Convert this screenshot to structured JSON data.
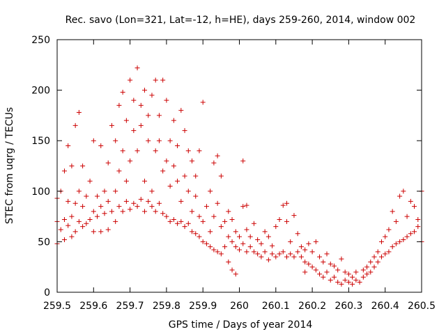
{
  "chart_data": {
    "type": "scatter",
    "title": "Rec. savo (Lon=321, Lat=-12, h=HE), days 259-260, 2014, window 002",
    "xlabel": "GPS time / Days of year 2014",
    "ylabel": "STEC from uqrg / TECUs",
    "xlim": [
      259.5,
      260.5
    ],
    "ylim": [
      0,
      250
    ],
    "x_ticks": [
      259.5,
      259.6,
      259.7,
      259.8,
      259.9,
      260,
      260.1,
      260.2,
      260.3,
      260.4,
      260.5
    ],
    "x_tick_labels": [
      "259.5",
      "259.6",
      "259.7",
      "259.8",
      "259.9",
      "260",
      "260.1",
      "260.2",
      "260.3",
      "260.4",
      "260.5"
    ],
    "y_ticks": [
      0,
      50,
      100,
      150,
      200,
      250
    ],
    "y_tick_labels": [
      "0",
      "50",
      "100",
      "150",
      "200",
      "250"
    ],
    "grid": false,
    "legend": "none",
    "marker": "+",
    "color": "#cc0000",
    "series": [
      {
        "points": [
          [
            259.5,
            48
          ],
          [
            259.5,
            70
          ],
          [
            259.5,
            93
          ],
          [
            259.51,
            62
          ],
          [
            259.51,
            100
          ],
          [
            259.52,
            72
          ],
          [
            259.52,
            120
          ],
          [
            259.52,
            52
          ],
          [
            259.53,
            66
          ],
          [
            259.53,
            90
          ],
          [
            259.53,
            145
          ],
          [
            259.54,
            55
          ],
          [
            259.54,
            75
          ],
          [
            259.54,
            125
          ],
          [
            259.55,
            60
          ],
          [
            259.55,
            88
          ],
          [
            259.55,
            165
          ],
          [
            259.56,
            70
          ],
          [
            259.56,
            100
          ],
          [
            259.56,
            178
          ],
          [
            259.57,
            65
          ],
          [
            259.57,
            85
          ],
          [
            259.57,
            125
          ],
          [
            259.58,
            68
          ],
          [
            259.58,
            95
          ],
          [
            259.59,
            72
          ],
          [
            259.59,
            110
          ],
          [
            259.6,
            60
          ],
          [
            259.6,
            80
          ],
          [
            259.6,
            150
          ],
          [
            259.61,
            75
          ],
          [
            259.61,
            95
          ],
          [
            259.62,
            60
          ],
          [
            259.62,
            85
          ],
          [
            259.62,
            145
          ],
          [
            259.63,
            78
          ],
          [
            259.63,
            100
          ],
          [
            259.64,
            62
          ],
          [
            259.64,
            90
          ],
          [
            259.64,
            128
          ],
          [
            259.65,
            80
          ],
          [
            259.65,
            165
          ],
          [
            259.66,
            70
          ],
          [
            259.66,
            100
          ],
          [
            259.66,
            150
          ],
          [
            259.67,
            85
          ],
          [
            259.67,
            120
          ],
          [
            259.67,
            185
          ],
          [
            259.68,
            80
          ],
          [
            259.68,
            140
          ],
          [
            259.68,
            198
          ],
          [
            259.69,
            90
          ],
          [
            259.69,
            110
          ],
          [
            259.69,
            170
          ],
          [
            259.7,
            82
          ],
          [
            259.7,
            130
          ],
          [
            259.7,
            210
          ],
          [
            259.71,
            88
          ],
          [
            259.71,
            160
          ],
          [
            259.71,
            190
          ],
          [
            259.72,
            85
          ],
          [
            259.72,
            140
          ],
          [
            259.72,
            222
          ],
          [
            259.73,
            92
          ],
          [
            259.73,
            165
          ],
          [
            259.73,
            185
          ],
          [
            259.74,
            80
          ],
          [
            259.74,
            110
          ],
          [
            259.74,
            200
          ],
          [
            259.75,
            90
          ],
          [
            259.75,
            150
          ],
          [
            259.75,
            175
          ],
          [
            259.76,
            85
          ],
          [
            259.76,
            100
          ],
          [
            259.76,
            195
          ],
          [
            259.77,
            80
          ],
          [
            259.77,
            140
          ],
          [
            259.77,
            210
          ],
          [
            259.78,
            88
          ],
          [
            259.78,
            175
          ],
          [
            259.78,
            150
          ],
          [
            259.79,
            78
          ],
          [
            259.79,
            120
          ],
          [
            259.79,
            210
          ],
          [
            259.8,
            75
          ],
          [
            259.8,
            130
          ],
          [
            259.8,
            190
          ],
          [
            259.81,
            70
          ],
          [
            259.81,
            105
          ],
          [
            259.81,
            150
          ],
          [
            259.82,
            72
          ],
          [
            259.82,
            125
          ],
          [
            259.82,
            170
          ],
          [
            259.83,
            68
          ],
          [
            259.83,
            110
          ],
          [
            259.83,
            145
          ],
          [
            259.84,
            70
          ],
          [
            259.84,
            90
          ],
          [
            259.84,
            180
          ],
          [
            259.85,
            65
          ],
          [
            259.85,
            115
          ],
          [
            259.85,
            160
          ],
          [
            259.86,
            68
          ],
          [
            259.86,
            100
          ],
          [
            259.86,
            140
          ],
          [
            259.87,
            60
          ],
          [
            259.87,
            80
          ],
          [
            259.87,
            130
          ],
          [
            259.88,
            58
          ],
          [
            259.88,
            95
          ],
          [
            259.88,
            115
          ],
          [
            259.89,
            55
          ],
          [
            259.89,
            75
          ],
          [
            259.89,
            140
          ],
          [
            259.9,
            50
          ],
          [
            259.9,
            70
          ],
          [
            259.9,
            188
          ],
          [
            259.91,
            48
          ],
          [
            259.91,
            85
          ],
          [
            259.92,
            45
          ],
          [
            259.92,
            60
          ],
          [
            259.92,
            100
          ],
          [
            259.93,
            42
          ],
          [
            259.93,
            75
          ],
          [
            259.93,
            128
          ],
          [
            259.94,
            40
          ],
          [
            259.94,
            88
          ],
          [
            259.94,
            135
          ],
          [
            259.95,
            38
          ],
          [
            259.95,
            65
          ],
          [
            259.95,
            115
          ],
          [
            259.96,
            45
          ],
          [
            259.96,
            70
          ],
          [
            259.97,
            30
          ],
          [
            259.97,
            55
          ],
          [
            259.97,
            80
          ],
          [
            259.98,
            50
          ],
          [
            259.98,
            22
          ],
          [
            259.98,
            72
          ],
          [
            259.99,
            45
          ],
          [
            259.99,
            60
          ],
          [
            259.99,
            18
          ],
          [
            260.0,
            42
          ],
          [
            260.0,
            55
          ],
          [
            260.01,
            48
          ],
          [
            260.01,
            85
          ],
          [
            260.01,
            130
          ],
          [
            260.02,
            40
          ],
          [
            260.02,
            62
          ],
          [
            260.02,
            86
          ],
          [
            260.03,
            45
          ],
          [
            260.03,
            55
          ],
          [
            260.04,
            40
          ],
          [
            260.04,
            68
          ],
          [
            260.05,
            38
          ],
          [
            260.05,
            52
          ],
          [
            260.06,
            35
          ],
          [
            260.06,
            48
          ],
          [
            260.07,
            40
          ],
          [
            260.07,
            60
          ],
          [
            260.08,
            32
          ],
          [
            260.08,
            55
          ],
          [
            260.09,
            38
          ],
          [
            260.09,
            46
          ],
          [
            260.1,
            35
          ],
          [
            260.1,
            65
          ],
          [
            260.11,
            38
          ],
          [
            260.11,
            72
          ],
          [
            260.12,
            40
          ],
          [
            260.12,
            86
          ],
          [
            260.13,
            35
          ],
          [
            260.13,
            70
          ],
          [
            260.13,
            88
          ],
          [
            260.14,
            38
          ],
          [
            260.14,
            50
          ],
          [
            260.15,
            35
          ],
          [
            260.15,
            76
          ],
          [
            260.16,
            40
          ],
          [
            260.16,
            58
          ],
          [
            260.17,
            35
          ],
          [
            260.17,
            45
          ],
          [
            260.18,
            30
          ],
          [
            260.18,
            20
          ],
          [
            260.18,
            42
          ],
          [
            260.19,
            28
          ],
          [
            260.19,
            48
          ],
          [
            260.2,
            25
          ],
          [
            260.2,
            40
          ],
          [
            260.21,
            22
          ],
          [
            260.21,
            50
          ],
          [
            260.22,
            18
          ],
          [
            260.22,
            35
          ],
          [
            260.23,
            15
          ],
          [
            260.23,
            30
          ],
          [
            260.24,
            20
          ],
          [
            260.24,
            38
          ],
          [
            260.25,
            12
          ],
          [
            260.25,
            28
          ],
          [
            260.26,
            15
          ],
          [
            260.26,
            26
          ],
          [
            260.27,
            10
          ],
          [
            260.27,
            22
          ],
          [
            260.28,
            8
          ],
          [
            260.28,
            33
          ],
          [
            260.29,
            12
          ],
          [
            260.29,
            20
          ],
          [
            260.3,
            10
          ],
          [
            260.3,
            18
          ],
          [
            260.31,
            8
          ],
          [
            260.31,
            15
          ],
          [
            260.32,
            12
          ],
          [
            260.32,
            20
          ],
          [
            260.33,
            10
          ],
          [
            260.34,
            15
          ],
          [
            260.34,
            22
          ],
          [
            260.35,
            18
          ],
          [
            260.35,
            25
          ],
          [
            260.36,
            20
          ],
          [
            260.36,
            30
          ],
          [
            260.37,
            25
          ],
          [
            260.37,
            35
          ],
          [
            260.38,
            30
          ],
          [
            260.38,
            40
          ],
          [
            260.39,
            35
          ],
          [
            260.39,
            50
          ],
          [
            260.4,
            38
          ],
          [
            260.4,
            55
          ],
          [
            260.41,
            40
          ],
          [
            260.41,
            62
          ],
          [
            260.42,
            45
          ],
          [
            260.42,
            80
          ],
          [
            260.43,
            48
          ],
          [
            260.43,
            70
          ],
          [
            260.44,
            50
          ],
          [
            260.44,
            95
          ],
          [
            260.45,
            52
          ],
          [
            260.45,
            100
          ],
          [
            260.46,
            55
          ],
          [
            260.46,
            75
          ],
          [
            260.47,
            58
          ],
          [
            260.47,
            90
          ],
          [
            260.48,
            60
          ],
          [
            260.48,
            85
          ],
          [
            260.49,
            65
          ],
          [
            260.49,
            72
          ],
          [
            260.5,
            50
          ],
          [
            260.5,
            100
          ]
        ]
      }
    ]
  }
}
